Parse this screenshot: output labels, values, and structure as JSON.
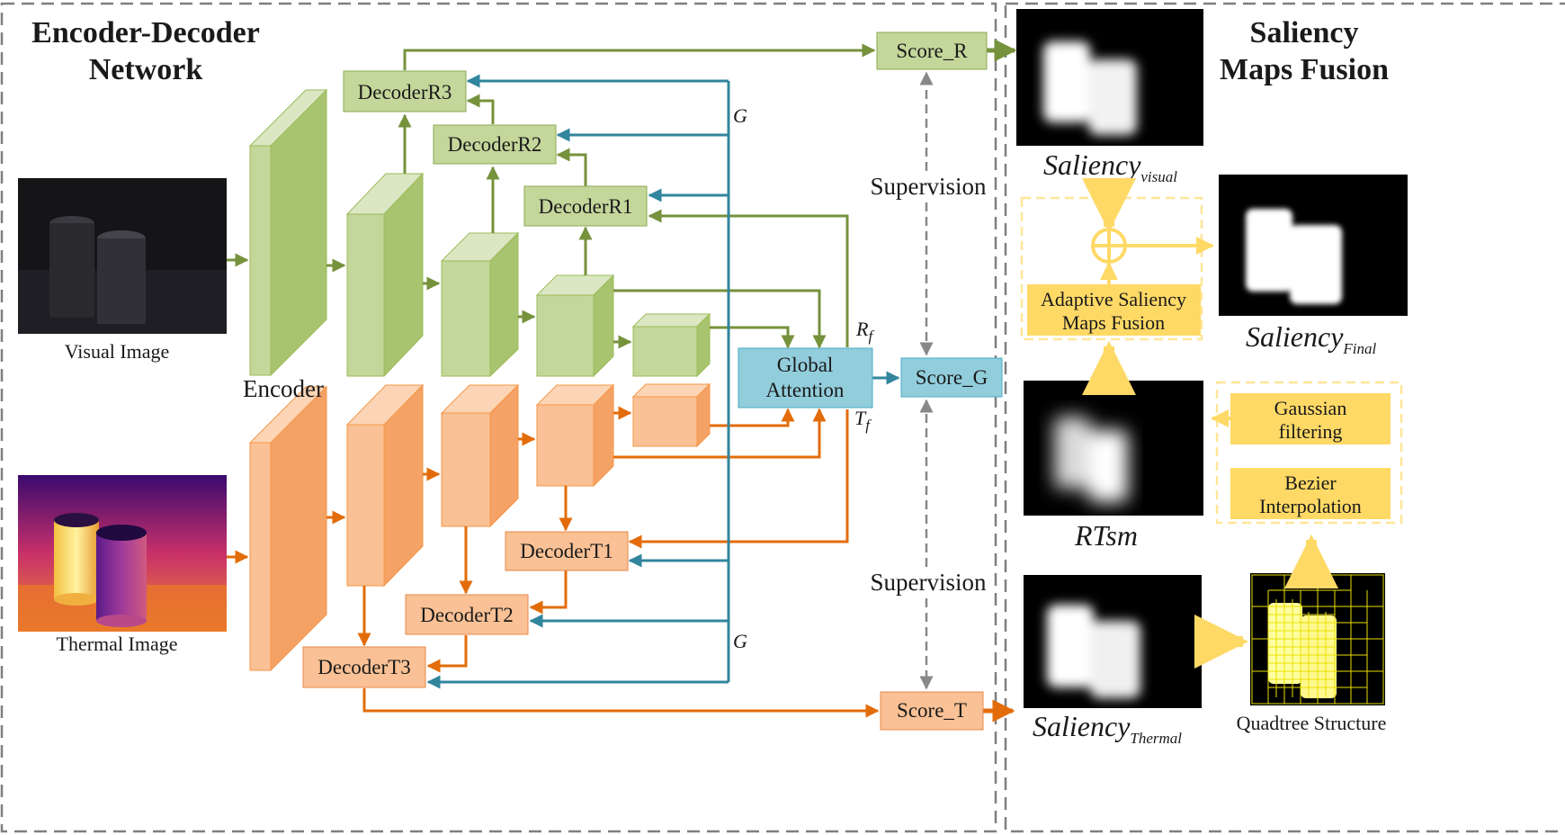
{
  "titles": {
    "left_line1": "Encoder-Decoder",
    "left_line2": "Network",
    "right_line1": "Saliency",
    "right_line2": "Maps Fusion"
  },
  "labels": {
    "visual_image": "Visual Image",
    "thermal_image": "Thermal Image",
    "encoder": "Encoder",
    "decoder_r3": "DecoderR3",
    "decoder_r2": "DecoderR2",
    "decoder_r1": "DecoderR1",
    "decoder_t1": "DecoderT1",
    "decoder_t2": "DecoderT2",
    "decoder_t3": "DecoderT3",
    "global_attention_1": "Global",
    "global_attention_2": "Attention",
    "score_r": "Score_R",
    "score_g": "Score_G",
    "score_t": "Score_T",
    "supervision_top": "Supervision",
    "supervision_bottom": "Supervision",
    "g_top": "G",
    "g_bottom": "G",
    "rf_main": "R",
    "rf_sub": "f",
    "tf_main": "T",
    "tf_sub": "f"
  },
  "fusion": {
    "saliency_visual_main": "Saliency",
    "saliency_visual_sub": "visual",
    "saliency_final_main": "Saliency",
    "saliency_final_sub": "Final",
    "saliency_thermal_main": "Saliency",
    "saliency_thermal_sub": "Thermal",
    "rtsm": "RTsm",
    "adaptive_1": "Adaptive Saliency",
    "adaptive_2": "Maps Fusion",
    "gaussian_1": "Gaussian",
    "gaussian_2": "filtering",
    "bezier_1": "Bezier",
    "bezier_2": "Interpolation",
    "quadtree": "Quadtree Structure"
  },
  "colors": {
    "green_arrow": "#76923c",
    "green_box": "#c4d79b",
    "orange_arrow": "#e36c0a",
    "orange_box": "#f9c195",
    "blue_arrow": "#31859c",
    "blue_box": "#92cddc",
    "yellow": "#ffd966"
  }
}
